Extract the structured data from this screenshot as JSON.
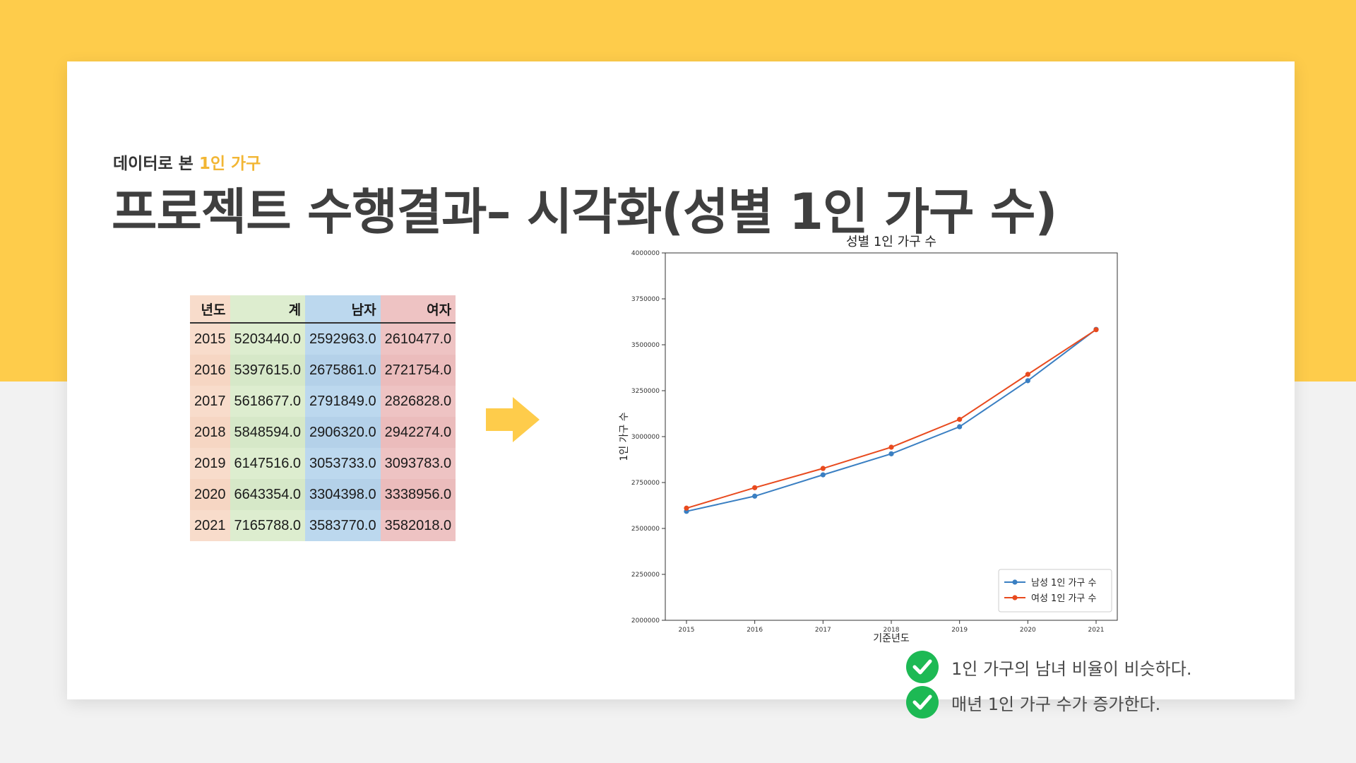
{
  "header": {
    "subtitle_prefix": "데이터로 본 ",
    "subtitle_accent": "1인 가구",
    "title": "프로젝트 수행결과– 시각화(성별 1인 가구 수)"
  },
  "colors": {
    "background_top": "#fecc4b",
    "accent": "#f2b634",
    "male_series": "#3a7fc2",
    "female_series": "#e84a1e",
    "check": "#1db954"
  },
  "table": {
    "headers": [
      "년도",
      "계",
      "남자",
      "여자"
    ],
    "rows": [
      [
        "2015",
        "5203440.0",
        "2592963.0",
        "2610477.0"
      ],
      [
        "2016",
        "5397615.0",
        "2675861.0",
        "2721754.0"
      ],
      [
        "2017",
        "5618677.0",
        "2791849.0",
        "2826828.0"
      ],
      [
        "2018",
        "5848594.0",
        "2906320.0",
        "2942274.0"
      ],
      [
        "2019",
        "6147516.0",
        "3053733.0",
        "3093783.0"
      ],
      [
        "2020",
        "6643354.0",
        "3304398.0",
        "3338956.0"
      ],
      [
        "2021",
        "7165788.0",
        "3583770.0",
        "3582018.0"
      ]
    ]
  },
  "arrow_icon": "right-arrow-icon",
  "chart_data": {
    "type": "line",
    "title": "성별 1인 가구 수",
    "xlabel": "기준년도",
    "ylabel": "1인 가구 수",
    "x": [
      "2015",
      "2016",
      "2017",
      "2018",
      "2019",
      "2020",
      "2021"
    ],
    "ylim": [
      2000000,
      4000000
    ],
    "yticks": [
      "2000000",
      "2250000",
      "2500000",
      "2750000",
      "3000000",
      "3250000",
      "3500000",
      "3750000",
      "4000000"
    ],
    "legend_position": "bottom-right",
    "grid": false,
    "series": [
      {
        "name": "남성 1인 가구 수",
        "color": "#3a7fc2",
        "values": [
          2592963,
          2675861,
          2791849,
          2906320,
          3053733,
          3304398,
          3583770
        ]
      },
      {
        "name": "여성 1인 가구 수",
        "color": "#e84a1e",
        "values": [
          2610477,
          2721754,
          2826828,
          2942274,
          3093783,
          3338956,
          3582018
        ]
      }
    ]
  },
  "notes": [
    {
      "icon": "check-circle-icon",
      "text": "1인 가구의 남녀 비율이 비슷하다."
    },
    {
      "icon": "check-circle-icon",
      "text": "매년 1인 가구 수가 증가한다."
    }
  ]
}
